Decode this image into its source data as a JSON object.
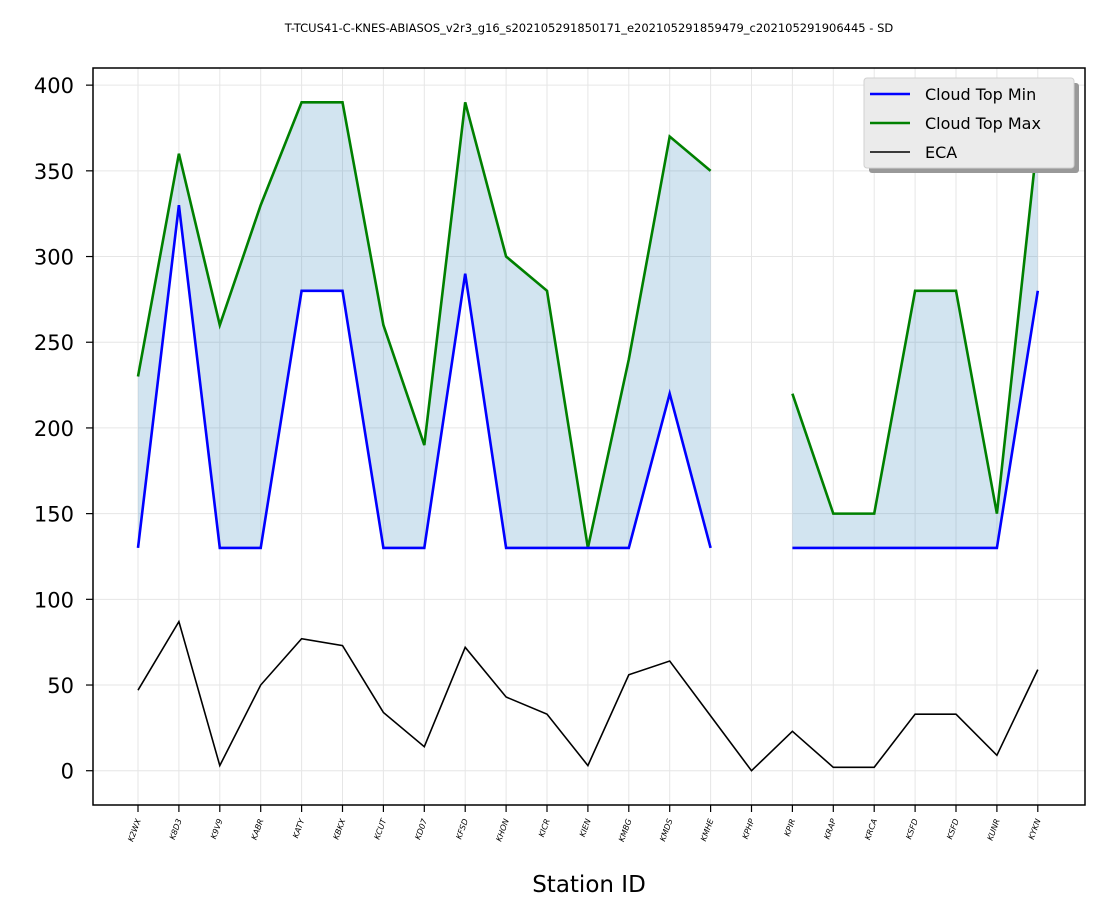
{
  "chart_data": {
    "type": "line",
    "title": "T-TCUS41-C-KNES-ABIASOS_v2r3_g16_s202105291850171_e202105291859479_c202105291906445 - SD",
    "xlabel": "Station ID",
    "ylabel": "",
    "ylim": [
      -20,
      410
    ],
    "yticks": [
      0,
      50,
      100,
      150,
      200,
      250,
      300,
      350,
      400
    ],
    "grid": true,
    "legend_position": "top-right",
    "categories": [
      "K2WX",
      "K8D3",
      "K9V9",
      "KABR",
      "KATY",
      "KBKX",
      "KCUT",
      "KD07",
      "KFSD",
      "KHON",
      "KICR",
      "KIEN",
      "KMBG",
      "KMDS",
      "KMHE",
      "KPHP",
      "KPIR",
      "KRAP",
      "KRCA",
      "KSFD",
      "KSFD",
      "KUNR",
      "KYKN"
    ],
    "series": [
      {
        "name": "Cloud Top Min",
        "color": "#0000ff",
        "values": [
          130,
          330,
          130,
          130,
          280,
          280,
          130,
          130,
          290,
          130,
          130,
          130,
          130,
          220,
          130,
          null,
          130,
          130,
          130,
          130,
          130,
          130,
          280
        ]
      },
      {
        "name": "Cloud Top Max",
        "color": "#008000",
        "values": [
          230,
          360,
          260,
          330,
          390,
          390,
          260,
          190,
          390,
          300,
          280,
          130,
          240,
          370,
          350,
          null,
          220,
          150,
          150,
          280,
          280,
          150,
          370
        ]
      },
      {
        "name": "ECA",
        "color": "#000000",
        "values": [
          47,
          87,
          3,
          50,
          77,
          73,
          34,
          14,
          72,
          43,
          33,
          3,
          56,
          64,
          32,
          0,
          23,
          2,
          2,
          33,
          33,
          9,
          59
        ]
      }
    ],
    "fill_between": {
      "color": "#1f77b4",
      "opacity": 0.2,
      "between": [
        "Cloud Top Min",
        "Cloud Top Max"
      ]
    }
  }
}
